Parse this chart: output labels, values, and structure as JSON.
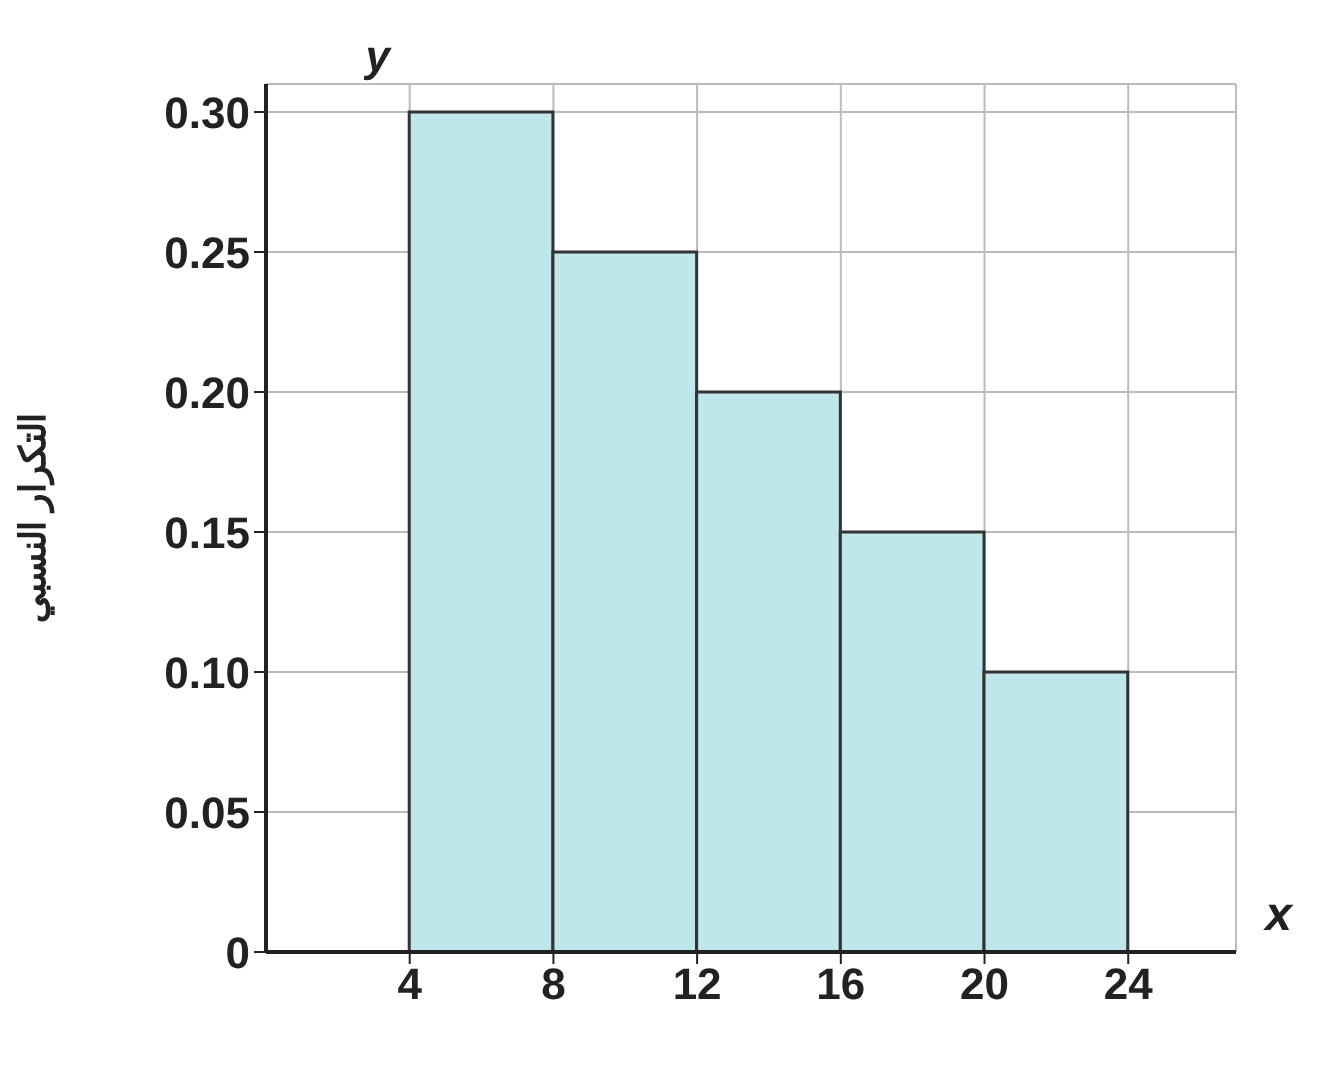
{
  "chart_data": {
    "type": "histogram",
    "xlabel": "x",
    "ylabel": "التكرار النسبي",
    "y2label": "y",
    "bins": [
      4,
      8,
      12,
      16,
      20,
      24
    ],
    "values": [
      0.3,
      0.25,
      0.2,
      0.15,
      0.1
    ],
    "color": "#bfe6ea",
    "xlim": [
      0,
      27
    ],
    "ylim": [
      0,
      0.31
    ],
    "xticks": [
      4,
      8,
      12,
      16,
      20,
      24
    ],
    "yticks": [
      0,
      0.05,
      {
        "value": 0.1,
        "label": "0.10"
      },
      0.15,
      {
        "value": 0.2,
        "label": "0.20"
      },
      0.25,
      {
        "value": 0.3,
        "label": "0.30"
      }
    ],
    "grid": true
  }
}
